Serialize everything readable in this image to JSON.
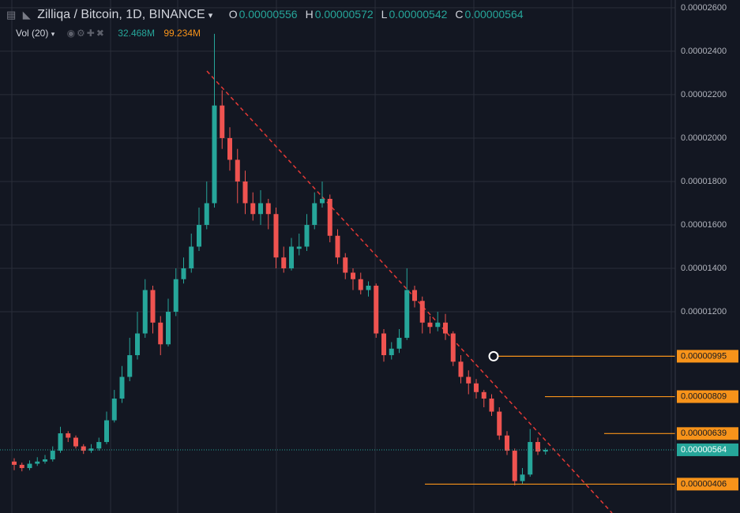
{
  "header": {
    "symbol": "Zilliqa / Bitcoin, 1D, BINANCE",
    "ohlc": [
      {
        "key": "O",
        "value": "0.00000556"
      },
      {
        "key": "H",
        "value": "0.00000572"
      },
      {
        "key": "L",
        "value": "0.00000542"
      },
      {
        "key": "C",
        "value": "0.00000564"
      }
    ],
    "volume": {
      "label": "Vol (20)",
      "value": "32.468M",
      "ma": "99.234M"
    }
  },
  "chart_data": {
    "type": "candlestick",
    "open": [
      5.1e-06,
      4.95e-06,
      4.8e-06,
      5e-06,
      5.1e-06,
      5.2e-06,
      5.6e-06,
      6.4e-06,
      6.2e-06,
      5.8e-06,
      5.6e-06,
      5.7e-06,
      6e-06,
      7e-06,
      8e-06,
      9e-06,
      1e-05,
      1.1e-05,
      1.3e-05,
      1.15e-05,
      1.05e-05,
      1.2e-05,
      1.35e-05,
      1.4e-05,
      1.5e-05,
      1.6e-05,
      1.7e-05,
      2.15e-05,
      2e-05,
      1.9e-05,
      1.8e-05,
      1.7e-05,
      1.65e-05,
      1.7e-05,
      1.65e-05,
      1.45e-05,
      1.4e-05,
      1.49e-05,
      1.5e-05,
      1.6e-05,
      1.7e-05,
      1.72e-05,
      1.55e-05,
      1.45e-05,
      1.38e-05,
      1.35e-05,
      1.3e-05,
      1.32e-05,
      1.1e-05,
      1e-05,
      1.03e-05,
      1.08e-05,
      1.3e-05,
      1.25e-05,
      1.15e-05,
      1.13e-05,
      1.15e-05,
      1.1e-05,
      9.7e-06,
      9e-06,
      8.7e-06,
      8.3e-06,
      8e-06,
      7.4e-06,
      6.3e-06,
      5.6e-06,
      4.2e-06,
      4.5e-06,
      6e-06,
      5.56e-06
    ],
    "high": [
      5.25e-06,
      5.05e-06,
      5.15e-06,
      5.3e-06,
      5.4e-06,
      5.8e-06,
      6.7e-06,
      6.5e-06,
      6.3e-06,
      5.9e-06,
      5.9e-06,
      6.2e-06,
      7.4e-06,
      8.4e-06,
      9.5e-06,
      1.08e-05,
      1.2e-05,
      1.35e-05,
      1.32e-05,
      1.18e-05,
      1.26e-05,
      1.4e-05,
      1.45e-05,
      1.56e-05,
      1.68e-05,
      1.8e-05,
      2.48e-05,
      2.22e-05,
      2.05e-05,
      1.95e-05,
      1.85e-05,
      1.75e-05,
      1.76e-05,
      1.72e-05,
      1.68e-05,
      1.5e-05,
      1.54e-05,
      1.56e-05,
      1.65e-05,
      1.75e-05,
      1.8e-05,
      1.74e-05,
      1.58e-05,
      1.47e-05,
      1.4e-05,
      1.38e-05,
      1.34e-05,
      1.33e-05,
      1.12e-05,
      1.06e-05,
      1.12e-05,
      1.4e-05,
      1.32e-05,
      1.27e-05,
      1.18e-05,
      1.2e-05,
      1.19e-05,
      1.11e-05,
      1e-05,
      9.3e-06,
      8.9e-06,
      8.4e-06,
      8.2e-06,
      7.6e-06,
      6.5e-06,
      5.7e-06,
      4.8e-06,
      6.6e-06,
      6.2e-06,
      5.72e-06
    ],
    "low": [
      4.7e-06,
      4.65e-06,
      4.7e-06,
      4.9e-06,
      5e-06,
      5.1e-06,
      5.5e-06,
      6e-06,
      5.7e-06,
      5.45e-06,
      5.5e-06,
      5.6e-06,
      5.9e-06,
      6.9e-06,
      7.8e-06,
      8.8e-06,
      9.8e-06,
      1.08e-05,
      1.1e-05,
      1e-05,
      1.04e-05,
      1.18e-05,
      1.33e-05,
      1.38e-05,
      1.48e-05,
      1.58e-05,
      1.68e-05,
      1.95e-05,
      1.85e-05,
      1.7e-05,
      1.65e-05,
      1.62e-05,
      1.6e-05,
      1.58e-05,
      1.4e-05,
      1.38e-05,
      1.39e-05,
      1.46e-05,
      1.48e-05,
      1.58e-05,
      1.68e-05,
      1.52e-05,
      1.42e-05,
      1.35e-05,
      1.3e-05,
      1.28e-05,
      1.27e-05,
      1.08e-05,
      9.7e-06,
      9.8e-06,
      1.01e-05,
      1.07e-05,
      1.22e-05,
      1.1e-05,
      1.1e-05,
      1.11e-05,
      1.07e-05,
      9.5e-06,
      8.7e-06,
      8.2e-06,
      8e-06,
      7.6e-06,
      7.2e-06,
      6.1e-06,
      5.4e-06,
      4e-06,
      4.05e-06,
      4.4e-06,
      5.4e-06,
      5.42e-06
    ],
    "close": [
      4.95e-06,
      4.8e-06,
      5e-06,
      5.1e-06,
      5.2e-06,
      5.6e-06,
      6.4e-06,
      6.2e-06,
      5.8e-06,
      5.6e-06,
      5.7e-06,
      6e-06,
      7e-06,
      8e-06,
      9e-06,
      1e-05,
      1.1e-05,
      1.3e-05,
      1.15e-05,
      1.05e-05,
      1.2e-05,
      1.35e-05,
      1.4e-05,
      1.5e-05,
      1.6e-05,
      1.7e-05,
      2.15e-05,
      2e-05,
      1.9e-05,
      1.8e-05,
      1.7e-05,
      1.65e-05,
      1.7e-05,
      1.65e-05,
      1.45e-05,
      1.4e-05,
      1.5e-05,
      1.5e-05,
      1.6e-05,
      1.7e-05,
      1.72e-05,
      1.55e-05,
      1.45e-05,
      1.38e-05,
      1.35e-05,
      1.3e-05,
      1.32e-05,
      1.1e-05,
      1e-05,
      1.03e-05,
      1.08e-05,
      1.3e-05,
      1.25e-05,
      1.15e-05,
      1.13e-05,
      1.15e-05,
      1.1e-05,
      9.7e-06,
      9e-06,
      8.7e-06,
      8.3e-06,
      8e-06,
      7.4e-06,
      6.3e-06,
      5.6e-06,
      4.2e-06,
      4.5e-06,
      6e-06,
      5.56e-06,
      5.64e-06
    ],
    "up_color": "#26a69a",
    "down_color": "#ef5350",
    "ylim": [
      2.73e-06,
      2.636e-05
    ],
    "yticks": [
      {
        "value": 2.6e-05,
        "label": "0.00002600"
      },
      {
        "value": 2.4e-05,
        "label": "0.00002400"
      },
      {
        "value": 2.2e-05,
        "label": "0.00002200"
      },
      {
        "value": 2e-05,
        "label": "0.00002000"
      },
      {
        "value": 1.8e-05,
        "label": "0.00001800"
      },
      {
        "value": 1.6e-05,
        "label": "0.00001600"
      },
      {
        "value": 1.4e-05,
        "label": "0.00001400"
      },
      {
        "value": 1.2e-05,
        "label": "0.00001200"
      }
    ],
    "grid": true,
    "price_lines": [
      9.95e-06,
      8.09e-06,
      6.39e-06,
      4.06e-06
    ],
    "price_line_color": "#f7931a",
    "last_price": 5.64e-06
  }
}
